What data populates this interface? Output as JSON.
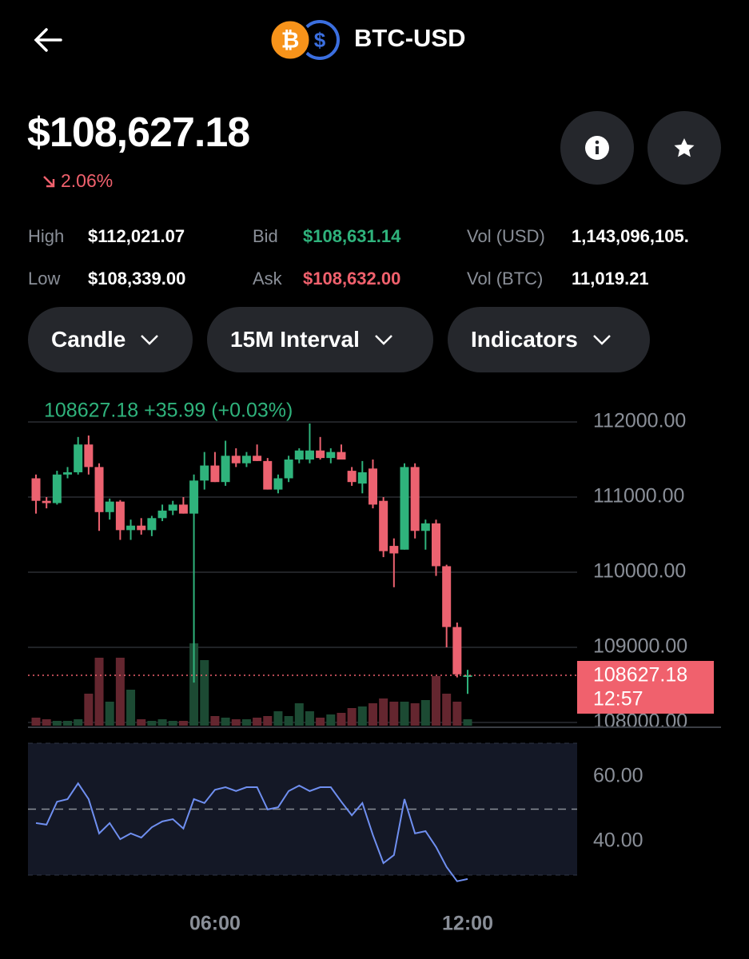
{
  "header": {
    "title": "BTC-USD"
  },
  "price": {
    "value": "$108,627.18",
    "change": "2.06%"
  },
  "stats": [
    [
      {
        "label": "High",
        "value": "$112,021.07"
      },
      {
        "label": "Bid",
        "value": "$108,631.14"
      },
      {
        "label": "Vol (USD)",
        "value": "1,143,096,105."
      }
    ],
    [
      {
        "label": "Low",
        "value": "$108,339.00"
      },
      {
        "label": "Ask",
        "value": "$108,632.00"
      },
      {
        "label": "Vol (BTC)",
        "value": "11,019.21"
      }
    ]
  ],
  "controls": [
    "Candle",
    "15M Interval",
    "Indicators"
  ],
  "chart_data": [
    {
      "type": "candlestick",
      "title": "108627.18  +35.99 (+0.03%)",
      "x": [
        1.75,
        2,
        2.25,
        2.5,
        2.75,
        3,
        3.25,
        3.5,
        3.75,
        4,
        4.25,
        4.5,
        4.75,
        5,
        5.25,
        5.5,
        5.75,
        6,
        6.25,
        6.5,
        6.75,
        7,
        7.25,
        7.5,
        7.75,
        8,
        8.25,
        8.5,
        8.75,
        9,
        9.25,
        9.5,
        9.75,
        10,
        10.25,
        10.5,
        10.75,
        11,
        11.25,
        11.5,
        11.75,
        12
      ],
      "open": [
        111250,
        110950,
        110920,
        111300,
        111330,
        111700,
        111400,
        110800,
        110940,
        110560,
        110620,
        110560,
        110720,
        110820,
        110900,
        110780,
        111220,
        111420,
        111200,
        111550,
        111450,
        111550,
        111480,
        111100,
        111250,
        111500,
        111500,
        111620,
        111520,
        111600,
        111350,
        111180,
        111380,
        110950,
        110350,
        110300,
        111400,
        110550,
        110650,
        110080,
        109270,
        108620
      ],
      "high": [
        111300,
        111000,
        111350,
        111400,
        111800,
        111820,
        111450,
        110980,
        110960,
        110700,
        110720,
        110750,
        110900,
        110950,
        111000,
        111300,
        111600,
        111600,
        111750,
        111650,
        111600,
        111700,
        111520,
        111300,
        111550,
        111650,
        111980,
        111800,
        111650,
        111700,
        111400,
        111480,
        111500,
        111000,
        110450,
        111450,
        111450,
        110700,
        110700,
        110100,
        109330,
        108700
      ],
      "low": [
        110780,
        110850,
        110900,
        111250,
        111300,
        111300,
        110550,
        110700,
        110430,
        110430,
        110500,
        110480,
        110680,
        110760,
        110780,
        108530,
        111100,
        111200,
        111150,
        111400,
        111400,
        111480,
        111100,
        111050,
        111200,
        111450,
        111450,
        111500,
        111450,
        111500,
        111150,
        111050,
        110850,
        110200,
        109800,
        110300,
        110450,
        110300,
        109950,
        109000,
        108600,
        108380
      ],
      "close": [
        110950,
        110920,
        111300,
        111330,
        111700,
        111400,
        110800,
        110940,
        110560,
        110620,
        110560,
        110720,
        110820,
        110900,
        110780,
        111220,
        111420,
        111200,
        111550,
        111450,
        111550,
        111480,
        111100,
        111250,
        111500,
        111620,
        111620,
        111520,
        111600,
        111500,
        111200,
        111330,
        110900,
        110280,
        110250,
        111400,
        110550,
        110650,
        110080,
        109270,
        108640,
        108627.18
      ],
      "volumes": [
        100,
        80,
        60,
        60,
        80,
        400,
        850,
        300,
        850,
        450,
        80,
        60,
        80,
        60,
        60,
        1030,
        820,
        120,
        100,
        80,
        80,
        100,
        120,
        180,
        120,
        280,
        180,
        100,
        140,
        160,
        220,
        240,
        280,
        340,
        300,
        300,
        280,
        320,
        620,
        400,
        300,
        80
      ],
      "up_color": "#2fb37c",
      "down_color": "#ec6270",
      "xlim": [
        1.56,
        14.6
      ],
      "xticks": [
        {
          "value": 6,
          "label": "06:00"
        },
        {
          "value": 12,
          "label": "12:00"
        }
      ],
      "ylim": [
        107957,
        112298
      ],
      "yticks": [
        {
          "value": 112000,
          "label": "112000.00"
        },
        {
          "value": 111000,
          "label": "111000.00"
        },
        {
          "value": 110000,
          "label": "110000.00"
        },
        {
          "value": 109000,
          "label": "109000.00"
        },
        {
          "value": 108000,
          "label": "108000.00"
        }
      ],
      "grid": true,
      "last_price": {
        "value": 108627.18,
        "label": "108627.18",
        "countdown": "12:57"
      }
    },
    {
      "type": "line",
      "color": "#6f8ff0",
      "values": [
        45.7,
        45.2,
        52.3,
        53.1,
        58.0,
        53.1,
        42.5,
        45.7,
        40.7,
        42.5,
        41.2,
        44.4,
        46.2,
        46.9,
        44.0,
        53.1,
        51.9,
        56.0,
        56.8,
        55.6,
        56.8,
        56.8,
        49.9,
        50.6,
        55.6,
        57.3,
        55.6,
        56.8,
        56.8,
        52.3,
        48.1,
        51.9,
        42.0,
        33.3,
        35.8,
        53.1,
        42.5,
        43.2,
        38.3,
        32.1,
        27.7,
        28.4
      ],
      "ylim": [
        29.6,
        70.4
      ],
      "yticks": [
        {
          "value": 60,
          "label": "60.00"
        },
        {
          "value": 40,
          "label": "40.00"
        }
      ],
      "reference_line": 50
    }
  ]
}
